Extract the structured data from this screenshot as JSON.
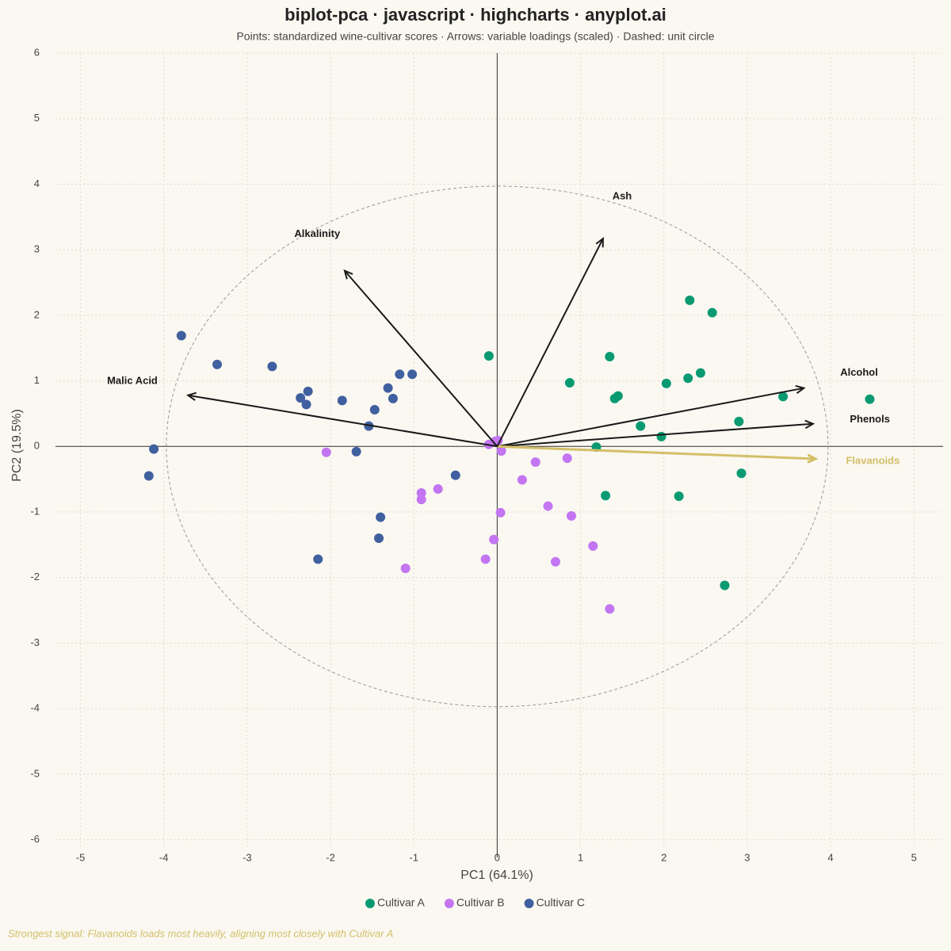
{
  "chart_data": {
    "type": "biplot",
    "title": "biplot-pca · javascript · highcharts · anyplot.ai",
    "subtitle": "Points: standardized wine-cultivar scores · Arrows: variable loadings (scaled) · Dashed: unit circle",
    "x_label": "PC1 (64.1%)",
    "y_label": "PC2 (19.5%)",
    "annotation": "Strongest signal: Flavanoids loads most heavily, aligning most closely with Cultivar A",
    "xlim": [
      -5.3,
      5.35
    ],
    "ylim": [
      -6.15,
      6
    ],
    "xticks": [
      -5,
      -4,
      -3,
      -2,
      -1,
      0,
      1,
      2,
      3,
      4,
      5
    ],
    "yticks": [
      -6,
      -5,
      -4,
      -3,
      -2,
      -1,
      0,
      1,
      2,
      3,
      4,
      5,
      6
    ],
    "grid": true,
    "unit_circle_radius": 3.97,
    "series": [
      {
        "name": "Cultivar A",
        "color": "#0a9a72",
        "x": [
          -0.1,
          1.35,
          2.31,
          2.58,
          0.87,
          2.03,
          2.29,
          2.44,
          1.41,
          1.45,
          3.43,
          4.47,
          2.9,
          1.72,
          1.97,
          1.19,
          2.93,
          1.3,
          2.18,
          2.73
        ],
        "values": [
          1.38,
          1.37,
          2.23,
          2.04,
          0.97,
          0.96,
          1.04,
          1.12,
          0.73,
          0.77,
          0.76,
          0.72,
          0.38,
          0.31,
          0.15,
          -0.01,
          -0.41,
          -0.75,
          -0.76,
          -2.12
        ]
      },
      {
        "name": "Cultivar B",
        "color": "#c375f2",
        "x": [
          -0.02,
          0.01,
          -0.1,
          0.05,
          -2.05,
          0.46,
          0.84,
          0.3,
          -0.91,
          -0.91,
          -0.71,
          0.61,
          0.04,
          0.89,
          -0.04,
          1.15,
          -0.14,
          0.7,
          -1.1,
          1.35
        ],
        "values": [
          0.08,
          0.09,
          0.03,
          -0.07,
          -0.09,
          -0.24,
          -0.18,
          -0.51,
          -0.71,
          -0.81,
          -0.65,
          -0.91,
          -1.01,
          -1.06,
          -1.42,
          -1.52,
          -1.72,
          -1.76,
          -1.86,
          -2.48
        ]
      },
      {
        "name": "Cultivar C",
        "color": "#40609f",
        "x": [
          -3.79,
          -3.36,
          -2.7,
          -1.17,
          -1.02,
          -1.31,
          -2.27,
          -2.36,
          -1.25,
          -2.29,
          -1.86,
          -1.47,
          -1.54,
          -4.12,
          -1.69,
          -4.18,
          -0.5,
          -1.4,
          -1.42,
          -2.15
        ],
        "values": [
          1.69,
          1.25,
          1.22,
          1.1,
          1.1,
          0.89,
          0.84,
          0.74,
          0.73,
          0.64,
          0.7,
          0.56,
          0.31,
          -0.04,
          -0.08,
          -0.45,
          -0.44,
          -1.08,
          -1.4,
          -1.72
        ]
      }
    ],
    "loadings": [
      {
        "name": "Alcohol",
        "color": "#1a1a1a",
        "x": 3.68,
        "y": 0.89
      },
      {
        "name": "Phenols",
        "color": "#1a1a1a",
        "x": 3.79,
        "y": 0.345
      },
      {
        "name": "Flavanoids",
        "color": "#d4bf68",
        "x": 3.82,
        "y": -0.19
      },
      {
        "name": "Ash",
        "color": "#1a1a1a",
        "x": 1.27,
        "y": 3.17
      },
      {
        "name": "Alkalinity",
        "color": "#1a1a1a",
        "x": -1.83,
        "y": 2.68
      },
      {
        "name": "Malic Acid",
        "color": "#1a1a1a",
        "x": -3.71,
        "y": 0.78
      }
    ]
  }
}
